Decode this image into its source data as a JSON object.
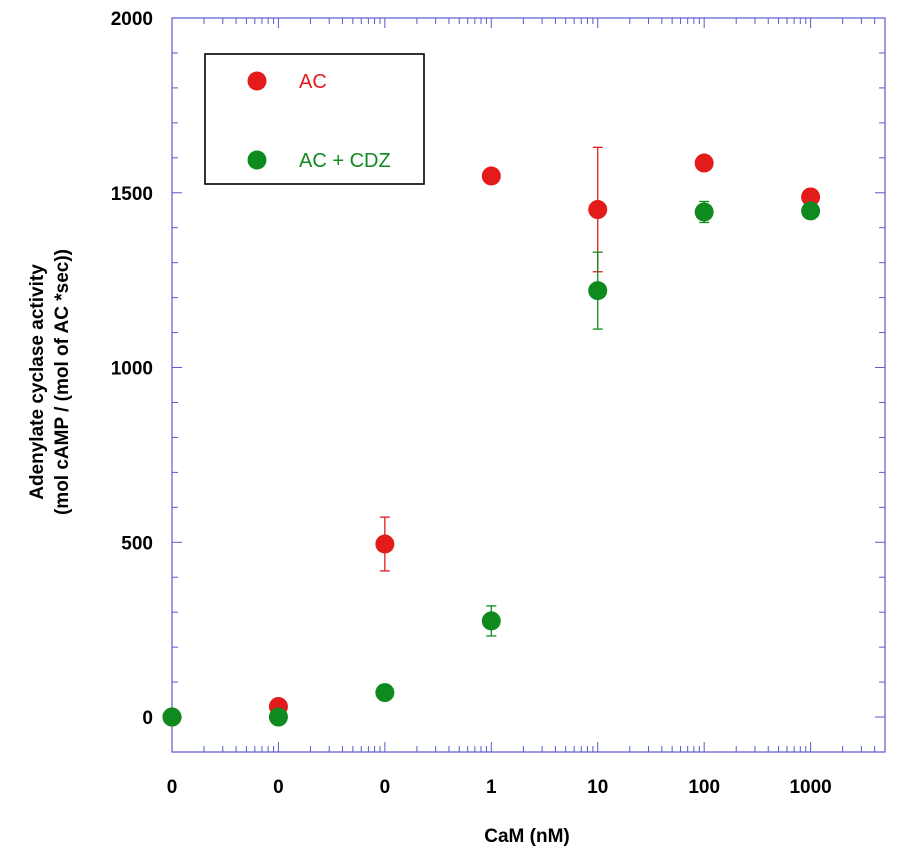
{
  "chart_data": {
    "type": "scatter",
    "x_scale": "log",
    "xlabel": "CaM (nM)",
    "ylabel_lines": [
      "Adenylate cyclase activity",
      "(mol cAMP / (mol of AC *sec))"
    ],
    "x_ticks": [
      {
        "value": 0.001,
        "label": "0"
      },
      {
        "value": 0.01,
        "label": "0"
      },
      {
        "value": 0.1,
        "label": "0"
      },
      {
        "value": 1,
        "label": "1"
      },
      {
        "value": 10,
        "label": "10"
      },
      {
        "value": 100,
        "label": "100"
      },
      {
        "value": 1000,
        "label": "1000"
      }
    ],
    "y_ticks": [
      {
        "value": 0,
        "label": "0"
      },
      {
        "value": 500,
        "label": "500"
      },
      {
        "value": 1000,
        "label": "1000"
      },
      {
        "value": 1500,
        "label": "1500"
      },
      {
        "value": 2000,
        "label": "2000"
      }
    ],
    "xlim": [
      0.001,
      5000
    ],
    "ylim": [
      -100,
      2000
    ],
    "grid": false,
    "legend_position": "top-left",
    "series": [
      {
        "name": "AC",
        "color": "#e31b1b",
        "points": [
          {
            "x": 0.001,
            "y": 0,
            "err": 0
          },
          {
            "x": 0.01,
            "y": 30,
            "err": 0
          },
          {
            "x": 0.1,
            "y": 495,
            "err": 77
          },
          {
            "x": 1,
            "y": 1548,
            "err": 0
          },
          {
            "x": 10,
            "y": 1452,
            "err": 178
          },
          {
            "x": 100,
            "y": 1585,
            "err": 0
          },
          {
            "x": 1000,
            "y": 1488,
            "err": 0
          }
        ]
      },
      {
        "name": "AC + CDZ",
        "color": "#0f8a1e",
        "points": [
          {
            "x": 0.001,
            "y": 0,
            "err": 0
          },
          {
            "x": 0.01,
            "y": 0,
            "err": 0
          },
          {
            "x": 0.1,
            "y": 70,
            "err": 0
          },
          {
            "x": 1,
            "y": 275,
            "err": 43
          },
          {
            "x": 10,
            "y": 1220,
            "err": 110
          },
          {
            "x": 100,
            "y": 1445,
            "err": 30
          },
          {
            "x": 1000,
            "y": 1448,
            "err": 0
          }
        ]
      }
    ]
  }
}
